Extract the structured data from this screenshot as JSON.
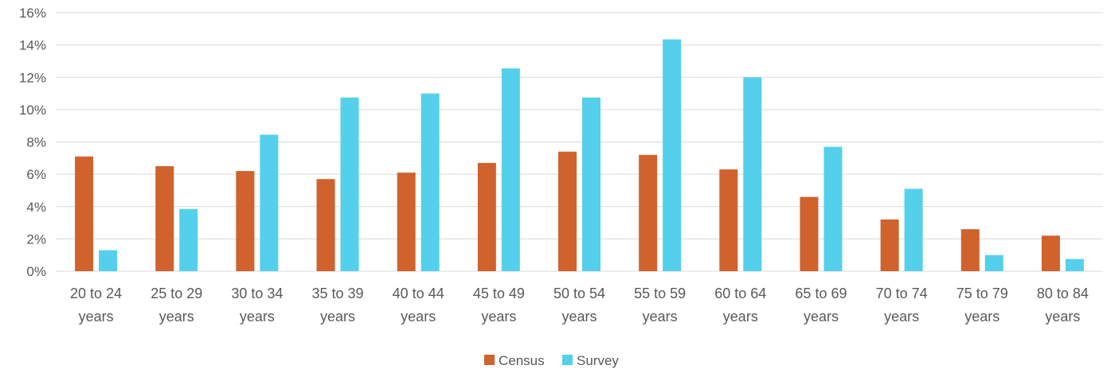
{
  "chart_data": {
    "type": "bar",
    "categories": [
      [
        "20 to 24",
        "years"
      ],
      [
        "25 to 29",
        "years"
      ],
      [
        "30 to 34",
        "years"
      ],
      [
        "35 to 39",
        "years"
      ],
      [
        "40 to 44",
        "years"
      ],
      [
        "45 to 49",
        "years"
      ],
      [
        "50 to 54",
        "years"
      ],
      [
        "55 to 59",
        "years"
      ],
      [
        "60 to 64",
        "years"
      ],
      [
        "65 to 69",
        "years"
      ],
      [
        "70 to 74",
        "years"
      ],
      [
        "75 to 79",
        "years"
      ],
      [
        "80 to 84",
        "years"
      ]
    ],
    "series": [
      {
        "name": "Census",
        "color": "#d0622d",
        "values": [
          7.1,
          6.5,
          6.2,
          5.7,
          6.1,
          6.7,
          7.4,
          7.2,
          6.3,
          4.6,
          3.2,
          2.6,
          2.2
        ]
      },
      {
        "name": "Survey",
        "color": "#54d0ec",
        "values": [
          1.3,
          3.85,
          8.45,
          10.75,
          11.0,
          12.55,
          10.75,
          14.35,
          12.0,
          7.7,
          5.1,
          1.0,
          0.75
        ]
      }
    ],
    "ylim": [
      0,
      16
    ],
    "yticks": [
      "0%",
      "2%",
      "4%",
      "6%",
      "8%",
      "10%",
      "12%",
      "14%",
      "16%"
    ],
    "ytick_values": [
      0,
      2,
      4,
      6,
      8,
      10,
      12,
      14,
      16
    ],
    "grid": true,
    "legend_position": "bottom-center"
  }
}
